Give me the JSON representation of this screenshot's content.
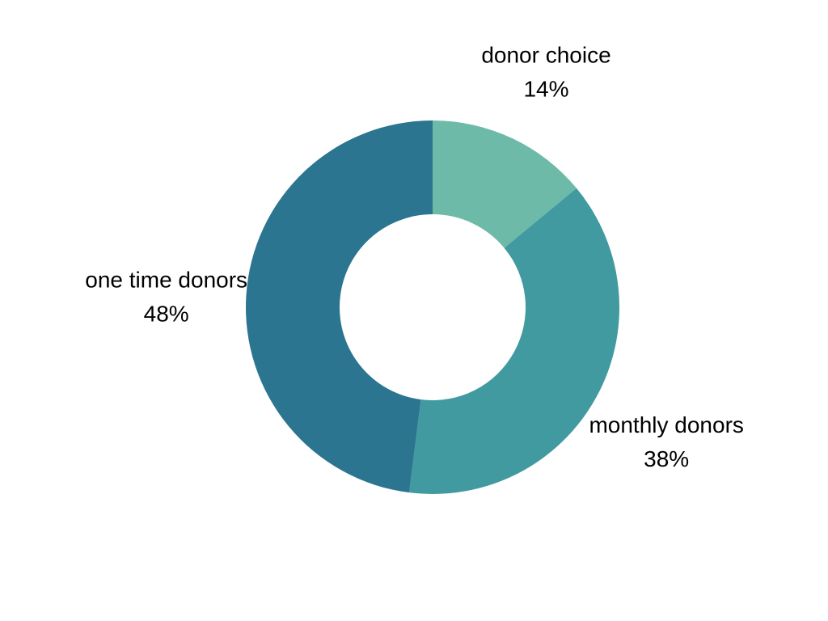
{
  "chart_data": {
    "type": "pie",
    "variant": "donut",
    "slices": [
      {
        "label": "donor choice",
        "value": 14,
        "value_label": "14%",
        "color": "#6dbaa9"
      },
      {
        "label": "monthly donors",
        "value": 38,
        "value_label": "38%",
        "color": "#419aa0"
      },
      {
        "label": "one time donors",
        "value": 48,
        "value_label": "48%",
        "color": "#2b7590"
      }
    ],
    "start": "12 o'clock",
    "direction": "clockwise",
    "legend": "none",
    "labels_outside": true
  }
}
